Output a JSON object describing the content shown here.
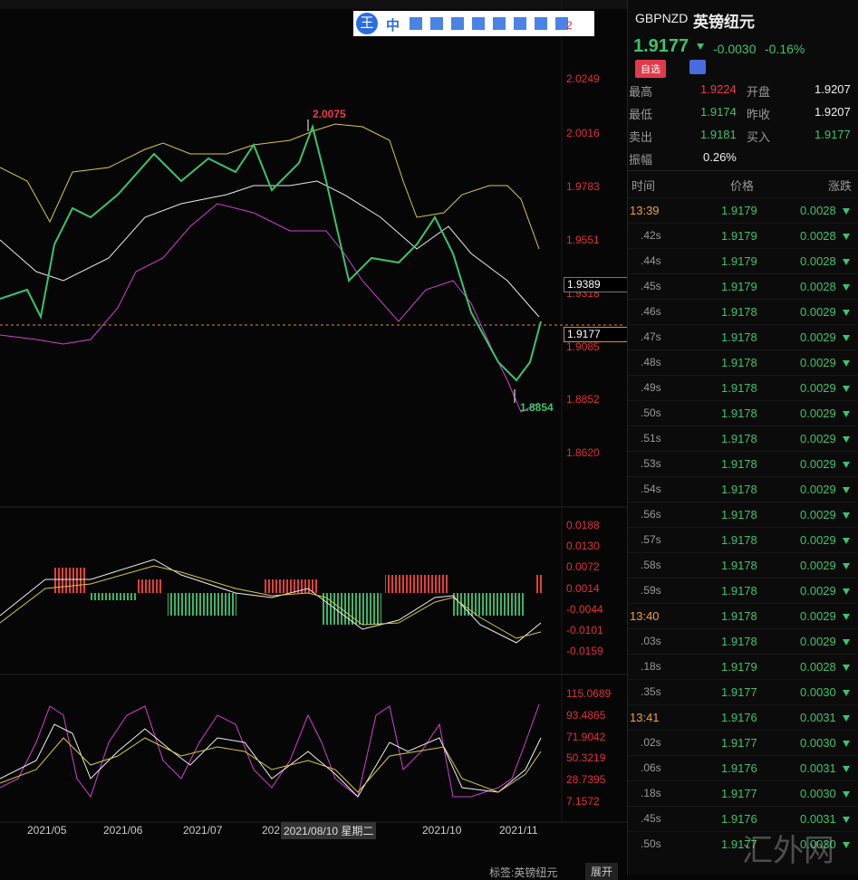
{
  "toolbar": {
    "logo": "王",
    "lang": "中"
  },
  "chart": {
    "price_axis": [
      "2",
      "2.0249",
      "2.0016",
      "1.9783",
      "1.9551",
      "1.9318",
      "1.9085",
      "1.8852",
      "1.8620"
    ],
    "price_tag_top": "1.9389",
    "price_tag_current": "1.9177",
    "high_label": "2.0075",
    "low_label": "1.8854",
    "macd_axis": [
      "0.0188",
      "0.0130",
      "0.0072",
      "0.0014",
      "-0.0044",
      "-0.0101",
      "-0.0159"
    ],
    "kdj_axis": [
      "115.0689",
      "93.4865",
      "71.9042",
      "50.3219",
      "28.7395",
      "7.1572"
    ],
    "date_axis": [
      "2021/05",
      "2021/06",
      "2021/07",
      "202",
      "2021/10",
      "2021/11"
    ],
    "crosshair_date": "2021/08/10 星期二"
  },
  "header": {
    "symbol": "GBPNZD",
    "name": "英镑纽元",
    "price": "1.9177",
    "change": "-0.0030",
    "change_pct": "-0.16%",
    "watch_button": "自选"
  },
  "stats": [
    [
      "最高",
      "1.9224",
      "开盘",
      "1.9207"
    ],
    [
      "最低",
      "1.9174",
      "昨收",
      "1.9207"
    ],
    [
      "卖出",
      "1.9181",
      "买入",
      "1.9177"
    ]
  ],
  "amplitude": {
    "label": "振幅",
    "value": "0.26%"
  },
  "ticks_header": [
    "时间",
    "价格",
    "涨跌"
  ],
  "ticks": [
    [
      "13:39",
      "1.9179",
      "0.0028"
    ],
    [
      ".42s",
      "1.9179",
      "0.0028"
    ],
    [
      ".44s",
      "1.9179",
      "0.0028"
    ],
    [
      ".45s",
      "1.9179",
      "0.0028"
    ],
    [
      ".46s",
      "1.9178",
      "0.0029"
    ],
    [
      ".47s",
      "1.9178",
      "0.0029"
    ],
    [
      ".48s",
      "1.9178",
      "0.0029"
    ],
    [
      ".49s",
      "1.9178",
      "0.0029"
    ],
    [
      ".50s",
      "1.9178",
      "0.0029"
    ],
    [
      ".51s",
      "1.9178",
      "0.0029"
    ],
    [
      ".53s",
      "1.9178",
      "0.0029"
    ],
    [
      ".54s",
      "1.9178",
      "0.0029"
    ],
    [
      ".56s",
      "1.9178",
      "0.0029"
    ],
    [
      ".57s",
      "1.9178",
      "0.0029"
    ],
    [
      ".58s",
      "1.9178",
      "0.0029"
    ],
    [
      ".59s",
      "1.9178",
      "0.0029"
    ],
    [
      "13:40",
      "1.9178",
      "0.0029"
    ],
    [
      ".03s",
      "1.9178",
      "0.0029"
    ],
    [
      ".18s",
      "1.9179",
      "0.0028"
    ],
    [
      ".35s",
      "1.9177",
      "0.0030"
    ],
    [
      "13:41",
      "1.9176",
      "0.0031"
    ],
    [
      ".02s",
      "1.9177",
      "0.0030"
    ],
    [
      ".06s",
      "1.9176",
      "0.0031"
    ],
    [
      ".18s",
      "1.9177",
      "0.0030"
    ],
    [
      ".45s",
      "1.9176",
      "0.0031"
    ],
    [
      ".50s",
      "1.9177",
      "0.0030"
    ]
  ],
  "footer": {
    "tag": "标签:英镑纽元",
    "expand": "展开"
  },
  "watermark": "汇外网"
}
